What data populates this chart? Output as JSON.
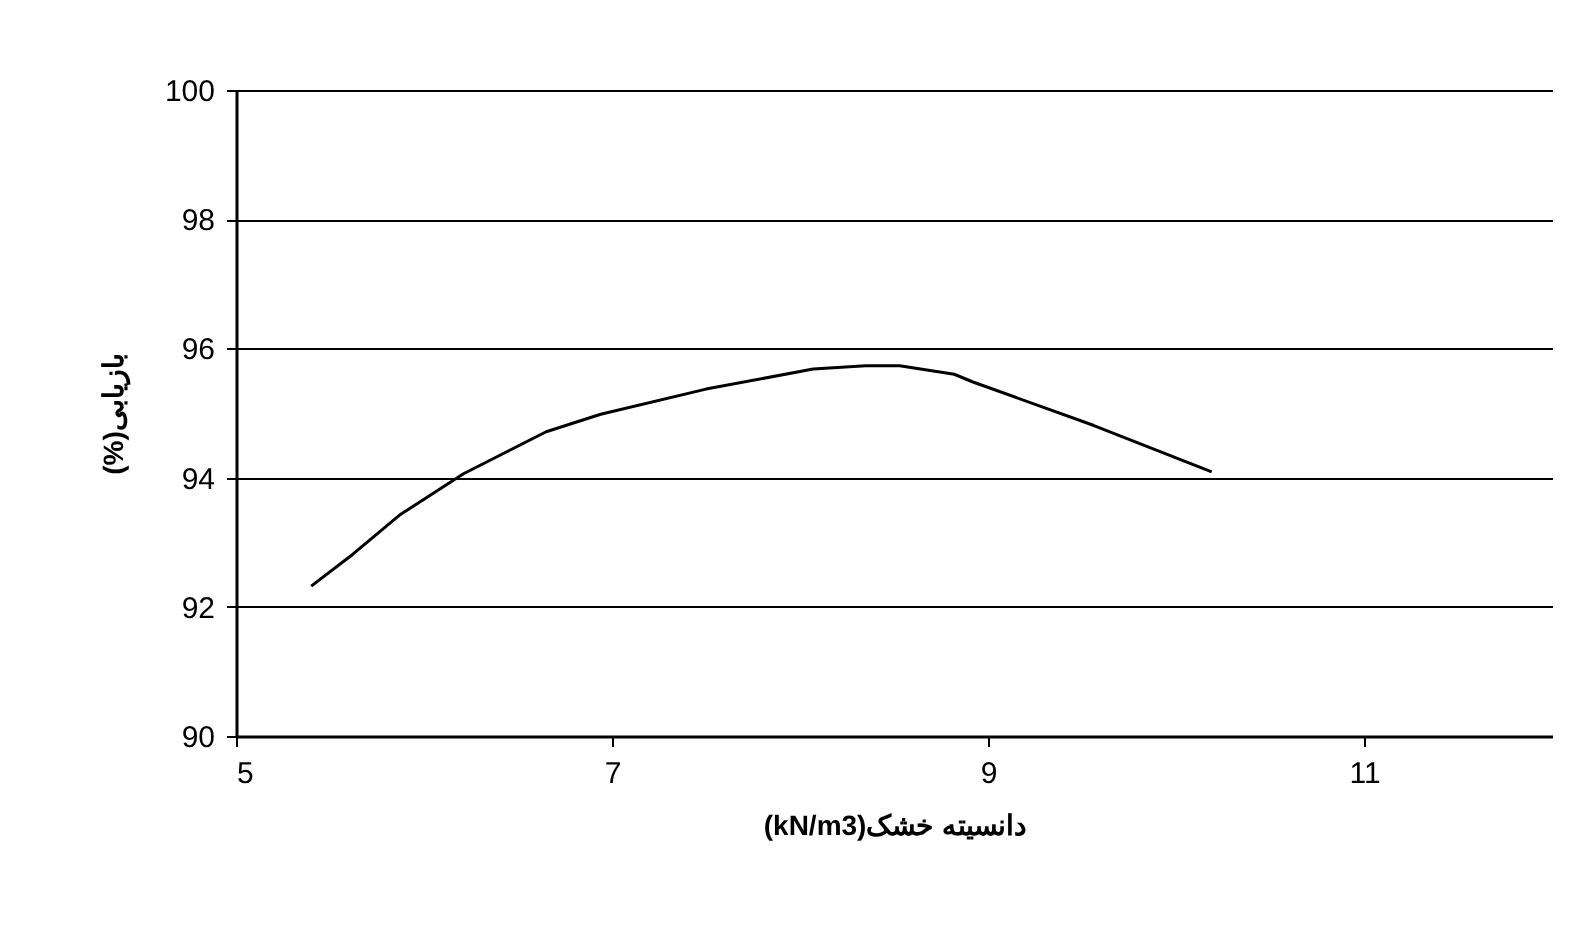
{
  "chart_data": {
    "type": "line",
    "xlabel": "(kN/m3)دانسیته خشک",
    "ylabel": "(%)بازیابی",
    "x": [
      5.4,
      5.62,
      5.87,
      6.21,
      6.65,
      6.94,
      7.5,
      8.07,
      8.35,
      8.53,
      8.82,
      8.92,
      9.56,
      10.19
    ],
    "series": [
      {
        "color": "#000000",
        "values": [
          92.32,
          92.81,
          93.42,
          94.06,
          94.71,
          94.98,
          95.37,
          95.68,
          95.73,
          95.73,
          95.6,
          95.48,
          94.81,
          94.09
        ]
      }
    ],
    "xlim": [
      5,
      12
    ],
    "xticks": [
      5,
      7,
      9,
      11
    ],
    "ylim": [
      90,
      100
    ],
    "yticks": [
      90,
      92,
      94,
      96,
      98,
      100
    ],
    "grid": "y",
    "marker": "none",
    "line_style": "solid"
  }
}
